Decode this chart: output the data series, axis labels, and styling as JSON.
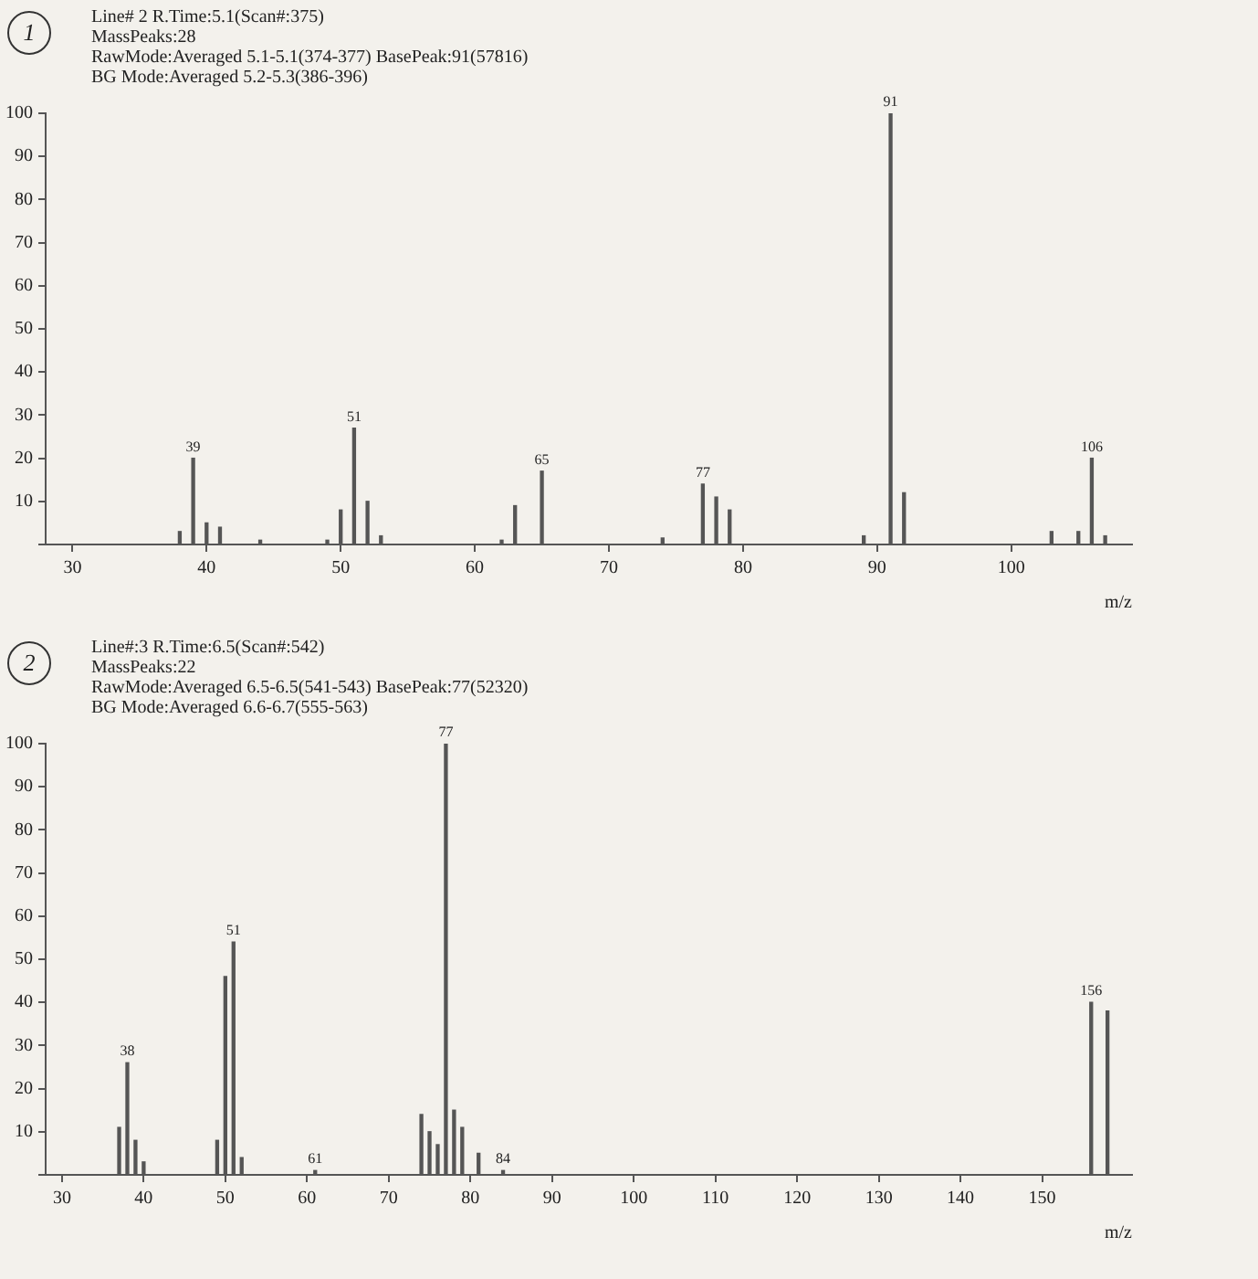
{
  "chart_data": [
    {
      "type": "bar",
      "title": "Line# 2  R.Time:5.1(Scan#:375)",
      "annotations": [
        "1",
        "MassPeaks:28",
        "RawMode:Averaged 5.1-5.1(374-377)  BasePeak:91(57816)",
        "BG Mode:Averaged 5.2-5.3(386-396)",
        {
          "text": "39",
          "x": 39,
          "y": 20
        },
        {
          "text": "51",
          "x": 51,
          "y": 27
        },
        {
          "text": "65",
          "x": 65,
          "y": 17
        },
        {
          "text": "77",
          "x": 77,
          "y": 14
        },
        {
          "text": "91",
          "x": 91,
          "y": 100
        },
        {
          "text": "106",
          "x": 106,
          "y": 20
        }
      ],
      "xlabel": "m/z",
      "x": [
        38,
        39,
        40,
        41,
        44,
        49,
        50,
        51,
        52,
        53,
        62,
        63,
        65,
        74,
        77,
        78,
        79,
        89,
        91,
        92,
        103,
        105,
        106,
        107
      ],
      "values": [
        3,
        20,
        5,
        4,
        1,
        1,
        8,
        27,
        10,
        2,
        1,
        9,
        17,
        1.5,
        14,
        11,
        8,
        2,
        100,
        12,
        3,
        3,
        20,
        2
      ],
      "color": "#555555",
      "xlim": [
        28,
        109
      ],
      "xticks": [
        30,
        40,
        50,
        60,
        70,
        80,
        90,
        100
      ],
      "ylim": [
        0,
        100
      ],
      "yticks": [
        {
          "value": 0,
          "label": null
        },
        10,
        20,
        30,
        40,
        50,
        60,
        70,
        80,
        90,
        100
      ],
      "grid": false,
      "legend": false
    },
    {
      "type": "bar",
      "title": "Line#:3  R.Time:6.5(Scan#:542)",
      "annotations": [
        "2",
        "MassPeaks:22",
        "RawMode:Averaged 6.5-6.5(541-543)  BasePeak:77(52320)",
        "BG Mode:Averaged 6.6-6.7(555-563)",
        {
          "text": "38",
          "x": 38,
          "y": 26
        },
        {
          "text": "51",
          "x": 51,
          "y": 54
        },
        {
          "text": "61",
          "x": 61,
          "y": 1
        },
        {
          "text": "77",
          "x": 77,
          "y": 100
        },
        {
          "text": "84",
          "x": 84,
          "y": 1
        },
        {
          "text": "156",
          "x": 156,
          "y": 40
        }
      ],
      "xlabel": "m/z",
      "x": [
        37,
        38,
        39,
        40,
        49,
        50,
        51,
        52,
        61,
        74,
        75,
        76,
        77,
        78,
        79,
        81,
        84,
        156,
        158
      ],
      "values": [
        11,
        26,
        8,
        3,
        8,
        46,
        54,
        4,
        1,
        14,
        10,
        7,
        100,
        15,
        11,
        5,
        1,
        40,
        38
      ],
      "color": "#555555",
      "xlim": [
        28,
        161
      ],
      "xticks": [
        30,
        40,
        50,
        60,
        70,
        80,
        90,
        100,
        110,
        120,
        130,
        140,
        150
      ],
      "ylim": [
        0,
        100
      ],
      "yticks": [
        {
          "value": 0,
          "label": null
        },
        10,
        20,
        30,
        40,
        50,
        60,
        70,
        80,
        90,
        100
      ],
      "grid": false,
      "legend": false
    }
  ]
}
